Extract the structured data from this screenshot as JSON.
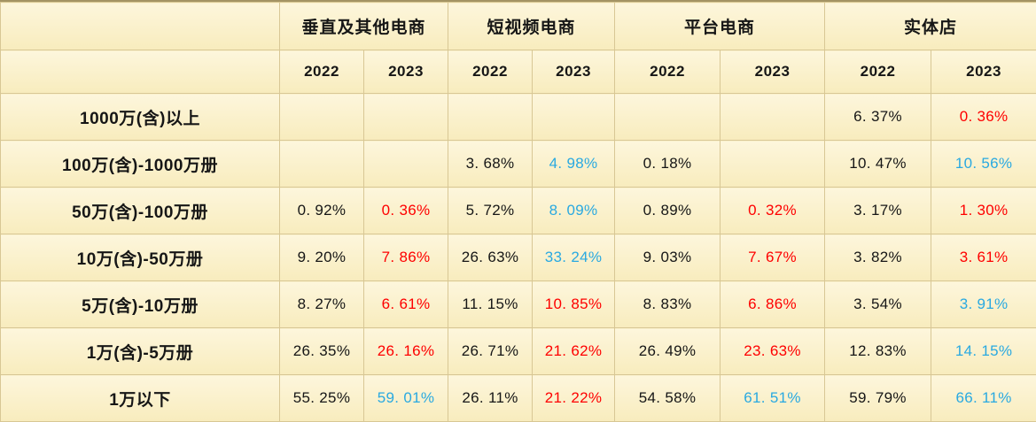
{
  "colors": {
    "bg_top": "#FDF6DC",
    "bg_bottom": "#F8ECBD",
    "border": "#D8C795",
    "frame_top": "#A39364",
    "black": "#161616",
    "red": "#FE0000",
    "blue": "#29A9E1"
  },
  "table": {
    "corner_label": "",
    "groups": [
      {
        "label": "垂直及其他电商"
      },
      {
        "label": "短视频电商"
      },
      {
        "label": "平台电商"
      },
      {
        "label": "实体店"
      }
    ],
    "year_columns": [
      "2022",
      "2023",
      "2022",
      "2023",
      "2022",
      "2023",
      "2022",
      "2023"
    ],
    "rows": [
      {
        "label": "1000万(含)以上",
        "cells": [
          {
            "text": "",
            "color": "none"
          },
          {
            "text": "",
            "color": "none"
          },
          {
            "text": "",
            "color": "none"
          },
          {
            "text": "",
            "color": "none"
          },
          {
            "text": "",
            "color": "none"
          },
          {
            "text": "",
            "color": "none"
          },
          {
            "text": "6. 37%",
            "color": "black"
          },
          {
            "text": "0. 36%",
            "color": "red"
          }
        ]
      },
      {
        "label": "100万(含)-1000万册",
        "cells": [
          {
            "text": "",
            "color": "none"
          },
          {
            "text": "",
            "color": "none"
          },
          {
            "text": "3. 68%",
            "color": "black"
          },
          {
            "text": "4. 98%",
            "color": "blue"
          },
          {
            "text": "0. 18%",
            "color": "black"
          },
          {
            "text": "",
            "color": "none"
          },
          {
            "text": "10. 47%",
            "color": "black"
          },
          {
            "text": "10. 56%",
            "color": "blue"
          }
        ]
      },
      {
        "label": "50万(含)-100万册",
        "cells": [
          {
            "text": "0. 92%",
            "color": "black"
          },
          {
            "text": "0. 36%",
            "color": "red"
          },
          {
            "text": "5. 72%",
            "color": "black"
          },
          {
            "text": "8. 09%",
            "color": "blue"
          },
          {
            "text": "0. 89%",
            "color": "black"
          },
          {
            "text": "0. 32%",
            "color": "red"
          },
          {
            "text": "3. 17%",
            "color": "black"
          },
          {
            "text": "1. 30%",
            "color": "red"
          }
        ]
      },
      {
        "label": "10万(含)-50万册",
        "cells": [
          {
            "text": "9. 20%",
            "color": "black"
          },
          {
            "text": "7. 86%",
            "color": "red"
          },
          {
            "text": "26. 63%",
            "color": "black"
          },
          {
            "text": "33. 24%",
            "color": "blue"
          },
          {
            "text": "9. 03%",
            "color": "black"
          },
          {
            "text": "7. 67%",
            "color": "red"
          },
          {
            "text": "3. 82%",
            "color": "black"
          },
          {
            "text": "3. 61%",
            "color": "red"
          }
        ]
      },
      {
        "label": "5万(含)-10万册",
        "cells": [
          {
            "text": "8. 27%",
            "color": "black"
          },
          {
            "text": "6. 61%",
            "color": "red"
          },
          {
            "text": "11. 15%",
            "color": "black"
          },
          {
            "text": "10. 85%",
            "color": "red"
          },
          {
            "text": "8. 83%",
            "color": "black"
          },
          {
            "text": "6. 86%",
            "color": "red"
          },
          {
            "text": "3. 54%",
            "color": "black"
          },
          {
            "text": "3. 91%",
            "color": "blue"
          }
        ]
      },
      {
        "label": "1万(含)-5万册",
        "cells": [
          {
            "text": "26. 35%",
            "color": "black"
          },
          {
            "text": "26. 16%",
            "color": "red"
          },
          {
            "text": "26. 71%",
            "color": "black"
          },
          {
            "text": "21. 62%",
            "color": "red"
          },
          {
            "text": "26. 49%",
            "color": "black"
          },
          {
            "text": "23. 63%",
            "color": "red"
          },
          {
            "text": "12. 83%",
            "color": "black"
          },
          {
            "text": "14. 15%",
            "color": "blue"
          }
        ]
      },
      {
        "label": "1万以下",
        "cells": [
          {
            "text": "55. 25%",
            "color": "black"
          },
          {
            "text": "59. 01%",
            "color": "blue"
          },
          {
            "text": "26. 11%",
            "color": "black"
          },
          {
            "text": "21. 22%",
            "color": "red"
          },
          {
            "text": "54. 58%",
            "color": "black"
          },
          {
            "text": "61. 51%",
            "color": "blue"
          },
          {
            "text": "59. 79%",
            "color": "black"
          },
          {
            "text": "66. 11%",
            "color": "blue"
          }
        ]
      }
    ]
  },
  "chart_data": {
    "type": "table",
    "unit": "%",
    "column_groups": [
      "垂直及其他电商",
      "短视频电商",
      "平台电商",
      "实体店"
    ],
    "years_per_group": [
      "2022",
      "2023"
    ],
    "row_categories": [
      "1000万(含)以上",
      "100万(含)-1000万册",
      "50万(含)-100万册",
      "10万(含)-50万册",
      "5万(含)-10万册",
      "1万(含)-5万册",
      "1万以下"
    ],
    "series": [
      {
        "name": "垂直及其他电商 2022",
        "values": [
          null,
          null,
          0.92,
          9.2,
          8.27,
          26.35,
          55.25
        ]
      },
      {
        "name": "垂直及其他电商 2023",
        "values": [
          null,
          null,
          0.36,
          7.86,
          6.61,
          26.16,
          59.01
        ]
      },
      {
        "name": "短视频电商 2022",
        "values": [
          null,
          3.68,
          5.72,
          26.63,
          11.15,
          26.71,
          26.11
        ]
      },
      {
        "name": "短视频电商 2023",
        "values": [
          null,
          4.98,
          8.09,
          33.24,
          10.85,
          21.62,
          21.22
        ]
      },
      {
        "name": "平台电商 2022",
        "values": [
          null,
          0.18,
          0.89,
          9.03,
          8.83,
          26.49,
          54.58
        ]
      },
      {
        "name": "平台电商 2023",
        "values": [
          null,
          null,
          0.32,
          7.67,
          6.86,
          23.63,
          61.51
        ]
      },
      {
        "name": "实体店 2022",
        "values": [
          6.37,
          10.47,
          3.17,
          3.82,
          3.54,
          12.83,
          59.79
        ]
      },
      {
        "name": "实体店 2023",
        "values": [
          0.36,
          10.56,
          1.3,
          3.61,
          3.91,
          14.15,
          66.11
        ]
      }
    ],
    "value_color_hex": {
      "black": "#161616",
      "red": "#FE0000",
      "blue": "#29A9E1"
    }
  }
}
